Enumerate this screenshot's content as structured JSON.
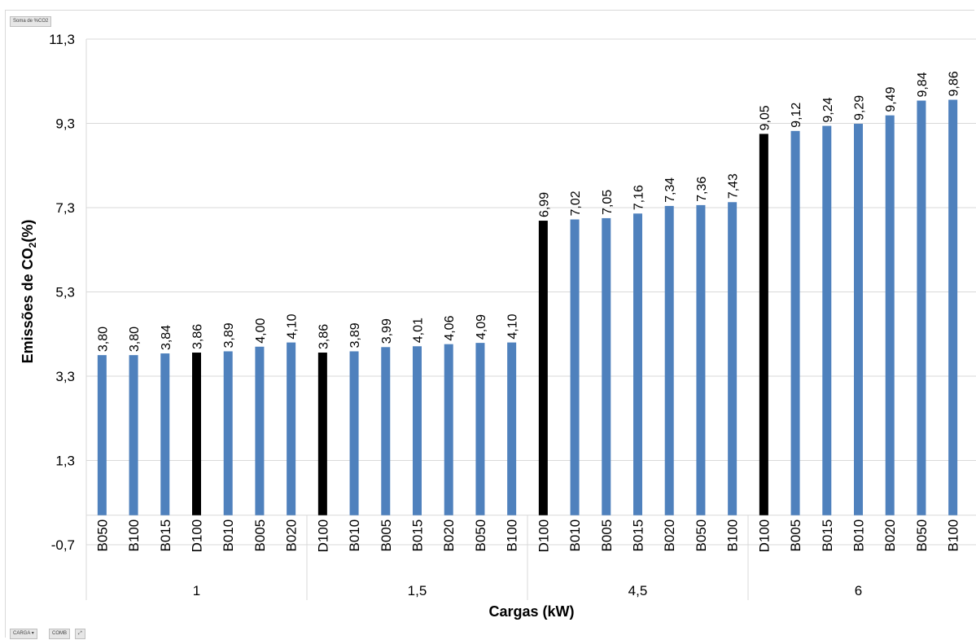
{
  "pivot": {
    "value_field": "Soma de %CO2",
    "row_field_1": "CARGA",
    "row_field_2": "COMB",
    "row_field_1_arrow": "▾",
    "expand_glyph": "⤢"
  },
  "chart_data": {
    "type": "bar",
    "title": "",
    "xlabel": "Cargas (kW)",
    "ylabel_main": "Emissões de CO",
    "ylabel_sub": "2",
    "ylabel_suffix": "(%)",
    "ylim": [
      -0.7,
      11.3
    ],
    "yticks": [
      "-0,7",
      "1,3",
      "3,3",
      "5,3",
      "7,3",
      "9,3",
      "11,3"
    ],
    "ytick_values": [
      -0.7,
      1.3,
      3.3,
      5.3,
      7.3,
      9.3,
      11.3
    ],
    "grid": true,
    "legend": "none",
    "colors": {
      "biodiesel": "#4f81bd",
      "diesel": "#000000",
      "grid": "#d9d9d9"
    },
    "groups": [
      {
        "name": "1",
        "bars": [
          {
            "label": "B050",
            "value": 3.8,
            "text": "3,80"
          },
          {
            "label": "B100",
            "value": 3.8,
            "text": "3,80"
          },
          {
            "label": "B015",
            "value": 3.84,
            "text": "3,84"
          },
          {
            "label": "D100",
            "value": 3.86,
            "text": "3,86"
          },
          {
            "label": "B010",
            "value": 3.89,
            "text": "3,89"
          },
          {
            "label": "B005",
            "value": 4.0,
            "text": "4,00"
          },
          {
            "label": "B020",
            "value": 4.1,
            "text": "4,10"
          }
        ]
      },
      {
        "name": "1,5",
        "bars": [
          {
            "label": "D100",
            "value": 3.86,
            "text": "3,86"
          },
          {
            "label": "B010",
            "value": 3.89,
            "text": "3,89"
          },
          {
            "label": "B005",
            "value": 3.99,
            "text": "3,99"
          },
          {
            "label": "B015",
            "value": 4.01,
            "text": "4,01"
          },
          {
            "label": "B020",
            "value": 4.06,
            "text": "4,06"
          },
          {
            "label": "B050",
            "value": 4.09,
            "text": "4,09"
          },
          {
            "label": "B100",
            "value": 4.1,
            "text": "4,10"
          }
        ]
      },
      {
        "name": "4,5",
        "bars": [
          {
            "label": "D100",
            "value": 6.99,
            "text": "6,99"
          },
          {
            "label": "B010",
            "value": 7.02,
            "text": "7,02"
          },
          {
            "label": "B005",
            "value": 7.05,
            "text": "7,05"
          },
          {
            "label": "B015",
            "value": 7.16,
            "text": "7,16"
          },
          {
            "label": "B020",
            "value": 7.34,
            "text": "7,34"
          },
          {
            "label": "B050",
            "value": 7.36,
            "text": "7,36"
          },
          {
            "label": "B100",
            "value": 7.43,
            "text": "7,43"
          }
        ]
      },
      {
        "name": "6",
        "bars": [
          {
            "label": "D100",
            "value": 9.05,
            "text": "9,05"
          },
          {
            "label": "B005",
            "value": 9.12,
            "text": "9,12"
          },
          {
            "label": "B015",
            "value": 9.24,
            "text": "9,24"
          },
          {
            "label": "B010",
            "value": 9.29,
            "text": "9,29"
          },
          {
            "label": "B020",
            "value": 9.49,
            "text": "9,49"
          },
          {
            "label": "B050",
            "value": 9.84,
            "text": "9,84"
          },
          {
            "label": "B100",
            "value": 9.86,
            "text": "9,86"
          }
        ]
      }
    ]
  }
}
